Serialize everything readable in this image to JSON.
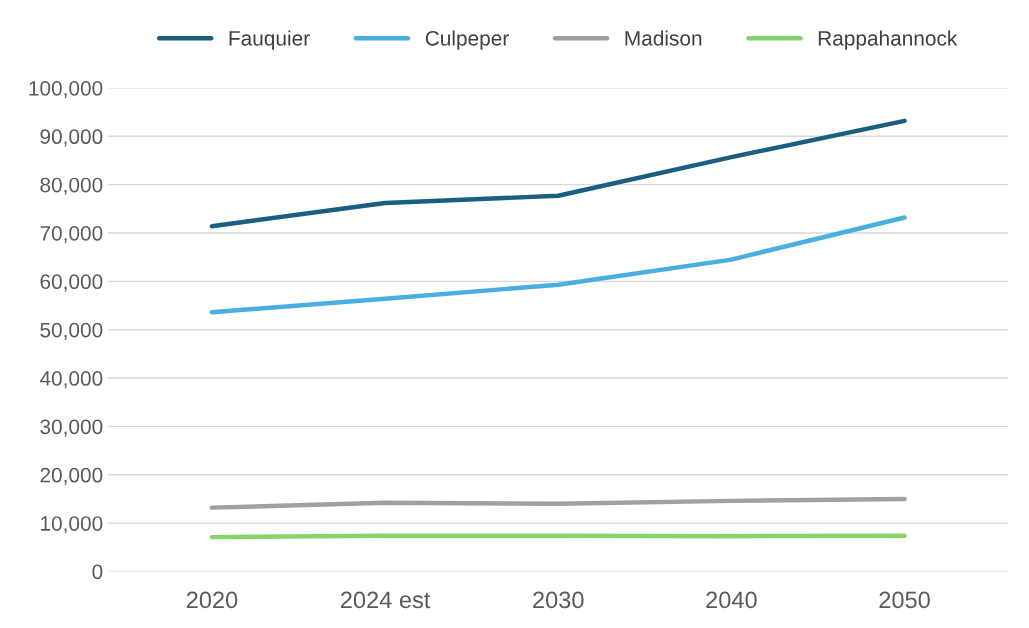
{
  "chart_data": {
    "type": "line",
    "categories": [
      "2020",
      "2024 est",
      "2030",
      "2040",
      "2050"
    ],
    "series": [
      {
        "name": "Fauquier",
        "color": "#1b5e82",
        "values": [
          71400,
          76200,
          77700,
          85700,
          93200
        ]
      },
      {
        "name": "Culpeper",
        "color": "#4aafe0",
        "values": [
          53600,
          56400,
          59300,
          64500,
          73200
        ]
      },
      {
        "name": "Madison",
        "color": "#a0a0a0",
        "values": [
          13200,
          14200,
          14000,
          14600,
          15000
        ]
      },
      {
        "name": "Rappahannock",
        "color": "#86d46c",
        "values": [
          7100,
          7400,
          7400,
          7300,
          7400
        ]
      }
    ],
    "ylim": [
      0,
      100000
    ],
    "yticks": [
      {
        "value": 0,
        "label": "0"
      },
      {
        "value": 10000,
        "label": "10,000"
      },
      {
        "value": 20000,
        "label": "20,000"
      },
      {
        "value": 30000,
        "label": "30,000"
      },
      {
        "value": 40000,
        "label": "40,000"
      },
      {
        "value": 50000,
        "label": "50,000"
      },
      {
        "value": 60000,
        "label": "60,000"
      },
      {
        "value": 70000,
        "label": "70,000"
      },
      {
        "value": 80000,
        "label": "80,000"
      },
      {
        "value": 90000,
        "label": "90,000"
      },
      {
        "value": 100000,
        "label": "100,000"
      }
    ],
    "grid": "y",
    "legend": "top",
    "marker": "none",
    "line_style": "solid"
  }
}
